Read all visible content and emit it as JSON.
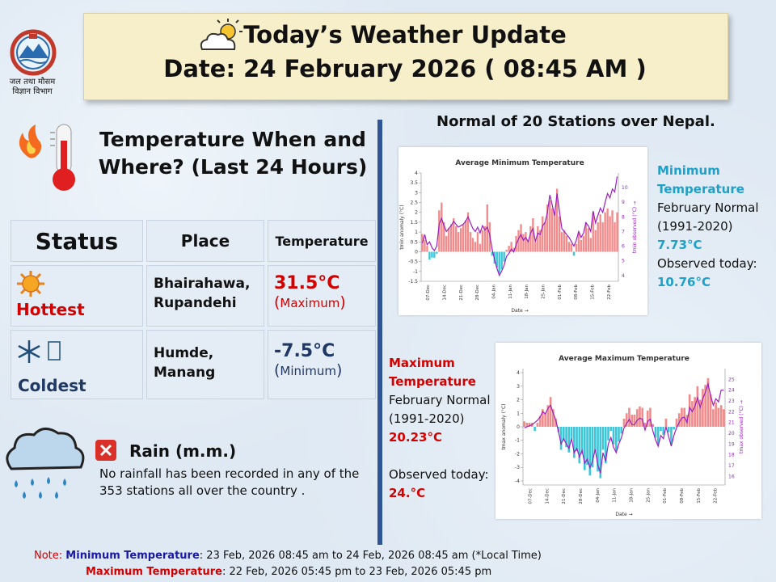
{
  "header": {
    "title": "Today’s Weather Update",
    "date_line": "Date: 24 February 2026 ( 08:45 AM )"
  },
  "logo": {
    "dept_line1": "जल तथा मौसम",
    "dept_line2": "विज्ञान विभाग"
  },
  "temperature_section": {
    "heading_line1": "Temperature When and",
    "heading_line2": "Where? (Last 24 Hours)"
  },
  "table": {
    "headers": {
      "status": "Status",
      "place": "Place",
      "temperature": "Temperature"
    },
    "hottest": {
      "status": "Hottest",
      "place_line1": "Bhairahawa,",
      "place_line2": "Rupandehi",
      "value": "31.5°C",
      "kind_open": "(",
      "kind": "Maximum",
      "kind_close": ")"
    },
    "coldest": {
      "status": "Coldest",
      "place_line1": "Humde,",
      "place_line2": "Manang",
      "value": "-7.5°C",
      "kind_open": "(",
      "kind": "Minimum",
      "kind_close": ")"
    }
  },
  "normals_title": "Normal of 20 Stations over Nepal.",
  "min_panel": {
    "title1": "Minimum",
    "title2": "Temperature",
    "line1": "February Normal",
    "line2": "(1991-2020)",
    "normal": "7.73°C",
    "obs_label": "Observed today:",
    "observed": "10.76°C"
  },
  "max_panel": {
    "title1": "Maximum",
    "title2": "Temperature",
    "line1": "February Normal",
    "line2": "(1991-2020)",
    "normal": "20.23°C",
    "obs_label": "Observed today:",
    "observed": "24.°C"
  },
  "rain": {
    "title": "Rain (m.m.)",
    "text": "No rainfall has been recorded in any of the 353 stations all over the country ."
  },
  "notes": {
    "prefix": "Note: ",
    "min_label": "Minimum Temperature",
    "min_text": ": 23 Feb, 2026 08:45 am to 24 Feb, 2026 08:45 am (*Local Time)",
    "max_label": "Maximum Temperature",
    "max_text": ": 22 Feb, 2026 05:45 pm to 23 Feb, 2026 05:45 pm"
  },
  "colors": {
    "accent_blue": "#1ea0c8",
    "accent_red": "#d40000",
    "bar_pos": "#f28b8b",
    "bar_neg": "#3cc6d8",
    "line": "#9b1fc0",
    "nav": "#2f5597"
  },
  "chart_data": [
    {
      "type": "bar",
      "title": "Average Minimum Temperature",
      "xlabel": "Date →",
      "ylabel": "tmin anomaly (°C)",
      "y2label": "tmin observed (°C) →",
      "ylim": [
        -1.5,
        4
      ],
      "y2lim": [
        3.6,
        11
      ],
      "yticks": [
        -1.5,
        -1,
        -0.5,
        0,
        0.5,
        1,
        1.5,
        2,
        2.5,
        3,
        3.5,
        4
      ],
      "y2ticks": [
        4,
        5,
        6,
        7,
        8,
        9,
        10
      ],
      "xticks": [
        "07-Dec",
        "14-Dec",
        "21-Dec",
        "28-Dec",
        "04-Jan",
        "11-Jan",
        "18-Jan",
        "25-Jan",
        "01-Feb",
        "08-Feb",
        "15-Feb",
        "22-Feb"
      ],
      "anomaly": [
        0.9,
        0.6,
        0.3,
        -0.4,
        -0.3,
        -0.3,
        -0.1,
        2.1,
        2.5,
        1.5,
        0.8,
        1.2,
        1.4,
        1.7,
        1.3,
        1.0,
        1.2,
        1.4,
        1.6,
        2.0,
        1.0,
        0.7,
        0.5,
        1.0,
        0.4,
        1.1,
        1.3,
        2.4,
        1.5,
        -0.2,
        -0.6,
        -0.8,
        -1.1,
        -0.9,
        -0.5,
        0.1,
        0.3,
        0.5,
        0.2,
        0.8,
        1.1,
        1.4,
        0.9,
        1.0,
        0.6,
        1.3,
        1.7,
        0.5,
        1.3,
        1.1,
        1.8,
        1.5,
        2.4,
        2.6,
        2.2,
        2.0,
        3.2,
        1.8,
        1.0,
        1.1,
        0.8,
        0.5,
        0.4,
        -0.2,
        0.4,
        1.0,
        0.6,
        0.8,
        1.5,
        1.2,
        0.7,
        2.0,
        1.1,
        1.5,
        1.9,
        1.5,
        2.0,
        2.2,
        1.8,
        2.1,
        1.5,
        2.0
      ],
      "observed": [
        6.2,
        6.8,
        6.1,
        6.3,
        5.9,
        5.7,
        6.0,
        7.5,
        7.9,
        7.4,
        7.0,
        7.2,
        7.4,
        7.7,
        7.5,
        7.3,
        7.4,
        7.5,
        7.7,
        8.0,
        7.6,
        7.2,
        7.0,
        7.3,
        6.9,
        7.4,
        7.1,
        7.3,
        6.8,
        5.8,
        5.1,
        4.5,
        4.0,
        4.3,
        4.7,
        5.3,
        5.5,
        5.8,
        5.6,
        6.1,
        6.5,
        6.8,
        6.4,
        6.6,
        6.3,
        6.9,
        7.2,
        6.3,
        6.9,
        6.8,
        7.4,
        7.6,
        8.3,
        9.5,
        8.8,
        8.1,
        9.6,
        8.4,
        7.2,
        7.0,
        6.8,
        6.6,
        6.3,
        6.0,
        6.4,
        7.0,
        6.6,
        6.9,
        7.6,
        7.4,
        7.0,
        8.4,
        7.6,
        8.1,
        8.6,
        8.3,
        9.0,
        9.6,
        9.3,
        9.9,
        9.7,
        10.76
      ]
    },
    {
      "type": "bar",
      "title": "Average Maximum Temperature",
      "xlabel": "Date →",
      "ylabel": "tmax anomaly (°C)",
      "y2label": "tmax observed (°C) →",
      "ylim": [
        -4.3,
        4.3
      ],
      "y2lim": [
        15.2,
        26
      ],
      "yticks": [
        -4,
        -3,
        -2,
        -1,
        0,
        1,
        2,
        3,
        4
      ],
      "y2ticks": [
        16,
        17,
        18,
        19,
        20,
        21,
        22,
        23,
        24,
        25
      ],
      "xticks": [
        "07-Dec",
        "14-Dec",
        "21-Dec",
        "28-Dec",
        "04-Jan",
        "11-Jan",
        "18-Jan",
        "25-Jan",
        "01-Feb",
        "08-Feb",
        "15-Feb",
        "22-Feb"
      ],
      "anomaly": [
        0.4,
        0.3,
        0.3,
        0.3,
        -0.3,
        0.3,
        0.8,
        1.3,
        1.0,
        1.6,
        2.2,
        1.3,
        0.6,
        -0.4,
        -1.7,
        -1.0,
        -1.5,
        -1.9,
        -0.9,
        -2.3,
        -1.8,
        -2.7,
        -2.0,
        -3.2,
        -2.8,
        -3.6,
        -3.0,
        -1.8,
        -3.3,
        -3.8,
        -1.7,
        -2.7,
        -1.0,
        -0.3,
        -1.3,
        -1.8,
        -1.1,
        -0.5,
        0.6,
        1.0,
        1.4,
        0.9,
        0.9,
        1.3,
        1.5,
        1.4,
        0.3,
        1.2,
        1.4,
        0.2,
        -0.8,
        -1.3,
        -0.3,
        -0.6,
        0.6,
        -0.4,
        -1.3,
        -0.2,
        0.6,
        1.0,
        1.4,
        1.4,
        0.9,
        2.4,
        1.9,
        2.2,
        3.0,
        2.0,
        2.8,
        3.1,
        3.6,
        2.4,
        1.3,
        1.8,
        1.4,
        1.6,
        1.3
      ],
      "observed": [
        20.5,
        20.6,
        20.7,
        20.8,
        21.0,
        21.2,
        21.5,
        22.0,
        21.8,
        22.3,
        22.6,
        21.9,
        21.2,
        20.2,
        19.0,
        19.5,
        19.0,
        18.6,
        19.5,
        18.2,
        18.6,
        17.8,
        18.4,
        17.2,
        17.6,
        16.8,
        17.4,
        18.5,
        17.1,
        16.3,
        18.2,
        17.4,
        19.0,
        19.6,
        18.7,
        18.2,
        19.0,
        19.6,
        20.5,
        20.9,
        21.3,
        20.8,
        20.8,
        21.2,
        21.4,
        21.3,
        20.3,
        21.1,
        21.3,
        20.2,
        19.4,
        18.8,
        19.8,
        19.5,
        20.6,
        19.7,
        18.8,
        19.8,
        20.5,
        21.0,
        21.4,
        21.5,
        21.0,
        22.4,
        22.0,
        22.5,
        23.3,
        22.4,
        23.2,
        23.8,
        24.6,
        23.5,
        22.6,
        23.2,
        22.9,
        24.0,
        24.0
      ]
    }
  ]
}
